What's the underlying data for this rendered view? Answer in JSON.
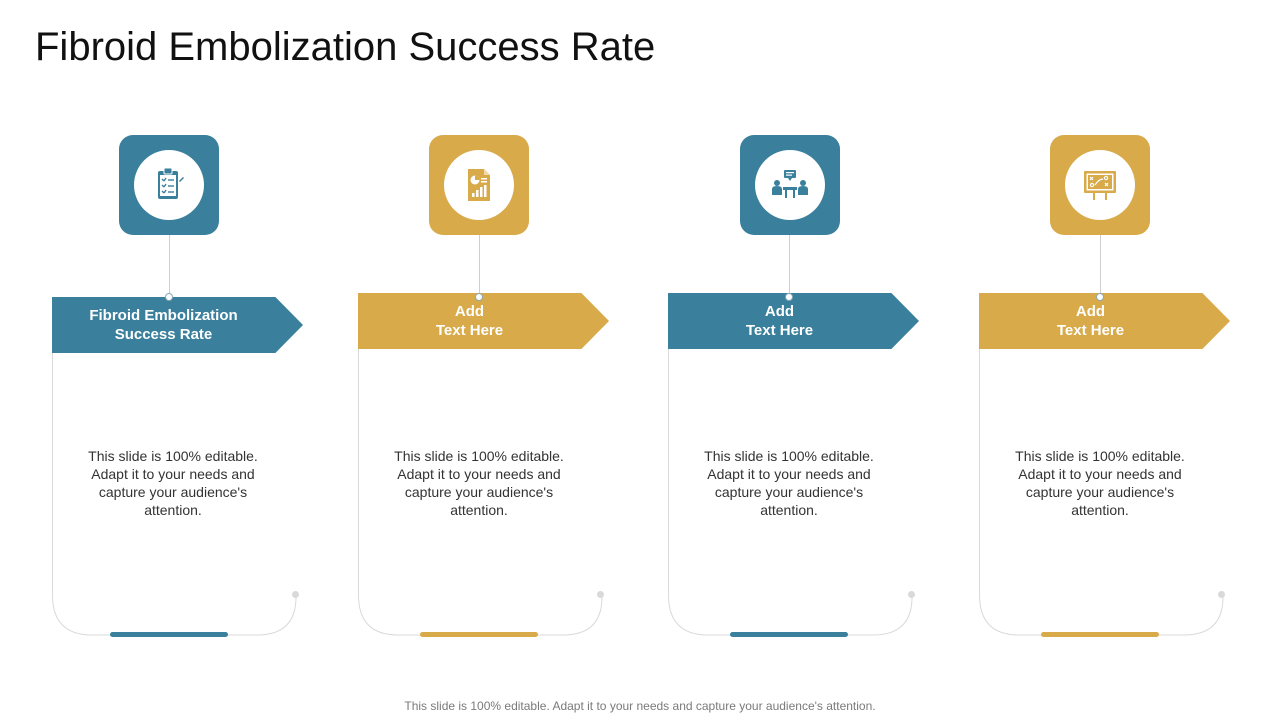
{
  "title": "Fibroid Embolization Success Rate",
  "colors": {
    "blue": "#3a7f9c",
    "gold": "#d8aa4a",
    "outline": "#d9d9d9"
  },
  "cards": [
    {
      "icon": "clipboard-checklist-icon",
      "color": "blue",
      "heading": "Fibroid Embolization\nSuccess Rate",
      "description": "This slide is 100% editable. Adapt it to your needs and capture your audience's attention."
    },
    {
      "icon": "report-chart-icon",
      "color": "gold",
      "heading": "Add\nText Here",
      "description": "This slide is 100% editable. Adapt it to your needs and capture your audience's attention."
    },
    {
      "icon": "team-meeting-icon",
      "color": "blue",
      "heading": "Add\nText Here",
      "description": "This slide is 100% editable. Adapt it to your needs and capture your audience's attention."
    },
    {
      "icon": "strategy-board-icon",
      "color": "gold",
      "heading": "Add\nText Here",
      "description": "This slide is 100% editable. Adapt it to your needs and capture your audience's attention."
    }
  ],
  "footer": "This slide is 100% editable. Adapt it to your needs and capture your audience's attention."
}
